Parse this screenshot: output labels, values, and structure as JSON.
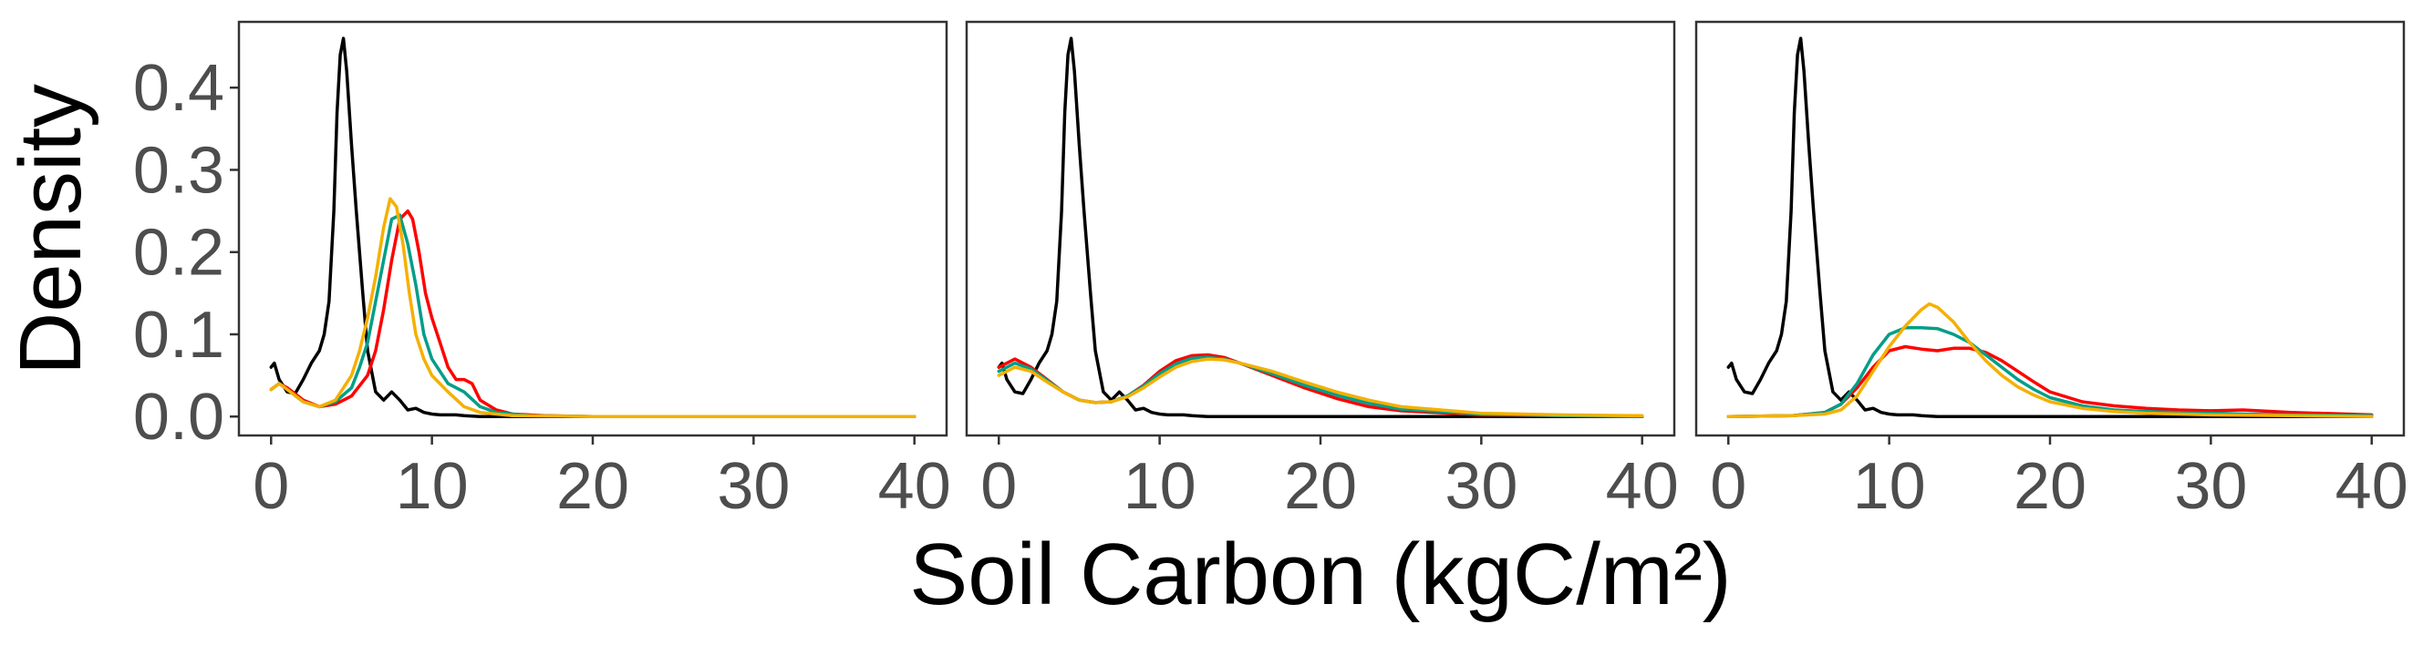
{
  "chart_data": [
    {
      "type": "line",
      "xlabel": "Soil Carbon (kgC/m²)",
      "ylabel": "Density",
      "xlim": [
        -2,
        42
      ],
      "ylim": [
        -0.023,
        0.48
      ],
      "x_ticks": [
        0,
        10,
        20,
        30,
        40
      ],
      "x_tick_labels": [
        "0",
        "10",
        "20",
        "30",
        "40"
      ],
      "y_ticks": [
        0.0,
        0.1,
        0.2,
        0.3,
        0.4
      ],
      "y_tick_labels": [
        "0.0",
        "0.1",
        "0.2",
        "0.3",
        "0.4"
      ],
      "grid": false,
      "legend": "none",
      "panels": [
        {
          "series": [
            {
              "color": "#000000",
              "x": [
                0,
                0.2,
                0.5,
                1.0,
                1.5,
                2.0,
                2.5,
                3.0,
                3.3,
                3.6,
                3.9,
                4.1,
                4.3,
                4.5,
                4.7,
                5.0,
                5.3,
                5.7,
                6.0,
                6.5,
                7.0,
                7.5,
                8.0,
                8.5,
                9.0,
                9.5,
                10.0,
                10.5,
                11.0,
                11.5,
                12.0,
                13.0,
                14.0,
                15.0,
                20.0,
                40.0
              ],
              "y": [
                0.06,
                0.065,
                0.045,
                0.03,
                0.028,
                0.045,
                0.065,
                0.08,
                0.1,
                0.14,
                0.25,
                0.37,
                0.44,
                0.46,
                0.42,
                0.33,
                0.25,
                0.15,
                0.08,
                0.03,
                0.02,
                0.03,
                0.02,
                0.008,
                0.01,
                0.005,
                0.003,
                0.002,
                0.002,
                0.002,
                0.001,
                0.0,
                0.0,
                0.0,
                0.0,
                0.0
              ]
            },
            {
              "color": "#ff0000",
              "x": [
                0,
                0.5,
                1.0,
                2.0,
                3.0,
                4.0,
                5.0,
                6.0,
                6.5,
                7.0,
                7.5,
                8.0,
                8.5,
                8.8,
                9.2,
                9.6,
                10.0,
                10.5,
                11.0,
                11.5,
                12.0,
                12.5,
                13.0,
                14.0,
                15.0,
                17.0,
                20.0,
                40.0
              ],
              "y": [
                0.033,
                0.04,
                0.035,
                0.02,
                0.012,
                0.015,
                0.025,
                0.05,
                0.08,
                0.13,
                0.19,
                0.24,
                0.25,
                0.24,
                0.2,
                0.15,
                0.12,
                0.09,
                0.06,
                0.045,
                0.045,
                0.04,
                0.02,
                0.008,
                0.003,
                0.001,
                0.0,
                0.0
              ]
            },
            {
              "color": "#009e88",
              "x": [
                0,
                0.5,
                1.0,
                2.0,
                3.0,
                4.0,
                5.0,
                5.5,
                6.0,
                6.5,
                7.0,
                7.5,
                8.0,
                8.5,
                9.0,
                9.5,
                10.0,
                11.0,
                12.0,
                13.0,
                14.0,
                16.0,
                20.0,
                40.0
              ],
              "y": [
                0.033,
                0.04,
                0.033,
                0.018,
                0.012,
                0.018,
                0.035,
                0.06,
                0.09,
                0.14,
                0.19,
                0.24,
                0.245,
                0.21,
                0.16,
                0.1,
                0.07,
                0.04,
                0.03,
                0.012,
                0.005,
                0.001,
                0.0,
                0.0
              ]
            },
            {
              "color": "#f5b000",
              "x": [
                0,
                0.5,
                1.0,
                2.0,
                3.0,
                4.0,
                5.0,
                5.5,
                6.0,
                6.5,
                7.0,
                7.4,
                7.8,
                8.2,
                8.6,
                9.0,
                9.5,
                10.0,
                11.0,
                12.0,
                13.0,
                15.0,
                20.0,
                40.0
              ],
              "y": [
                0.033,
                0.04,
                0.033,
                0.018,
                0.012,
                0.02,
                0.05,
                0.08,
                0.12,
                0.17,
                0.23,
                0.265,
                0.255,
                0.21,
                0.15,
                0.1,
                0.07,
                0.05,
                0.03,
                0.012,
                0.005,
                0.001,
                0.0,
                0.0
              ]
            }
          ]
        },
        {
          "series": [
            {
              "color": "#000000",
              "x": [
                0,
                0.2,
                0.5,
                1.0,
                1.5,
                2.0,
                2.5,
                3.0,
                3.3,
                3.6,
                3.9,
                4.1,
                4.3,
                4.5,
                4.7,
                5.0,
                5.3,
                5.7,
                6.0,
                6.5,
                7.0,
                7.5,
                8.0,
                8.5,
                9.0,
                9.5,
                10.0,
                10.5,
                11.0,
                11.5,
                12.0,
                13.0,
                14.0,
                15.0,
                20.0,
                40.0
              ],
              "y": [
                0.06,
                0.065,
                0.045,
                0.03,
                0.028,
                0.045,
                0.065,
                0.08,
                0.1,
                0.14,
                0.25,
                0.37,
                0.44,
                0.46,
                0.42,
                0.33,
                0.25,
                0.15,
                0.08,
                0.03,
                0.02,
                0.03,
                0.02,
                0.008,
                0.01,
                0.005,
                0.003,
                0.002,
                0.002,
                0.002,
                0.001,
                0.0,
                0.0,
                0.0,
                0.0,
                0.0
              ]
            },
            {
              "color": "#ff0000",
              "x": [
                0,
                1.0,
                2.0,
                3.0,
                4.0,
                5.0,
                6.0,
                7.0,
                8.0,
                9.0,
                10.0,
                11.0,
                12.0,
                13.0,
                14.0,
                15.0,
                17.0,
                19.0,
                21.0,
                23.0,
                25.0,
                30.0,
                35.0,
                40.0
              ],
              "y": [
                0.06,
                0.07,
                0.06,
                0.045,
                0.03,
                0.02,
                0.017,
                0.018,
                0.025,
                0.038,
                0.055,
                0.068,
                0.074,
                0.075,
                0.072,
                0.065,
                0.05,
                0.035,
                0.022,
                0.012,
                0.007,
                0.002,
                0.001,
                0.0
              ]
            },
            {
              "color": "#009e88",
              "x": [
                0,
                1.0,
                2.0,
                3.0,
                4.0,
                5.0,
                6.0,
                7.0,
                8.0,
                9.0,
                10.0,
                11.0,
                12.0,
                13.0,
                14.0,
                15.0,
                17.0,
                19.0,
                21.0,
                23.0,
                25.0,
                30.0,
                35.0,
                40.0
              ],
              "y": [
                0.055,
                0.065,
                0.058,
                0.044,
                0.03,
                0.02,
                0.017,
                0.018,
                0.025,
                0.037,
                0.052,
                0.064,
                0.071,
                0.072,
                0.07,
                0.065,
                0.052,
                0.038,
                0.026,
                0.016,
                0.009,
                0.003,
                0.001,
                0.0
              ]
            },
            {
              "color": "#f5b000",
              "x": [
                0,
                1.0,
                2.0,
                3.0,
                4.0,
                5.0,
                6.0,
                7.0,
                8.0,
                9.0,
                10.0,
                11.0,
                12.0,
                13.0,
                14.0,
                15.0,
                17.0,
                19.0,
                21.0,
                23.0,
                25.0,
                30.0,
                35.0,
                40.0
              ],
              "y": [
                0.05,
                0.06,
                0.055,
                0.042,
                0.03,
                0.02,
                0.017,
                0.018,
                0.024,
                0.035,
                0.048,
                0.06,
                0.067,
                0.07,
                0.069,
                0.065,
                0.055,
                0.042,
                0.03,
                0.02,
                0.012,
                0.004,
                0.002,
                0.001
              ]
            }
          ]
        },
        {
          "series": [
            {
              "color": "#000000",
              "x": [
                0,
                0.2,
                0.5,
                1.0,
                1.5,
                2.0,
                2.5,
                3.0,
                3.3,
                3.6,
                3.9,
                4.1,
                4.3,
                4.5,
                4.7,
                5.0,
                5.3,
                5.7,
                6.0,
                6.5,
                7.0,
                7.5,
                8.0,
                8.5,
                9.0,
                9.5,
                10.0,
                10.5,
                11.0,
                11.5,
                12.0,
                13.0,
                14.0,
                15.0,
                20.0,
                40.0
              ],
              "y": [
                0.06,
                0.065,
                0.045,
                0.03,
                0.028,
                0.045,
                0.065,
                0.08,
                0.1,
                0.14,
                0.25,
                0.37,
                0.44,
                0.46,
                0.42,
                0.33,
                0.25,
                0.15,
                0.08,
                0.03,
                0.02,
                0.03,
                0.02,
                0.008,
                0.01,
                0.005,
                0.003,
                0.002,
                0.002,
                0.002,
                0.001,
                0.0,
                0.0,
                0.0,
                0.0,
                0.0
              ]
            },
            {
              "color": "#ff0000",
              "x": [
                0,
                4.0,
                6.0,
                7.0,
                8.0,
                9.0,
                10.0,
                11.0,
                12.0,
                13.0,
                14.0,
                15.0,
                16.0,
                17.0,
                18.0,
                19.0,
                20.0,
                22.0,
                24.0,
                26.0,
                28.0,
                30.0,
                32.0,
                35.0,
                40.0
              ],
              "y": [
                0.0,
                0.001,
                0.005,
                0.015,
                0.035,
                0.06,
                0.08,
                0.085,
                0.082,
                0.08,
                0.083,
                0.083,
                0.078,
                0.068,
                0.055,
                0.042,
                0.03,
                0.018,
                0.013,
                0.01,
                0.008,
                0.007,
                0.008,
                0.005,
                0.002
              ]
            },
            {
              "color": "#009e88",
              "x": [
                0,
                4.0,
                6.0,
                7.0,
                8.0,
                9.0,
                10.0,
                11.0,
                12.0,
                13.0,
                14.0,
                15.0,
                16.0,
                17.0,
                18.0,
                19.0,
                20.0,
                22.0,
                24.0,
                26.0,
                28.0,
                30.0,
                32.0,
                35.0,
                40.0
              ],
              "y": [
                0.0,
                0.001,
                0.005,
                0.015,
                0.04,
                0.075,
                0.1,
                0.108,
                0.108,
                0.107,
                0.1,
                0.09,
                0.075,
                0.06,
                0.045,
                0.033,
                0.023,
                0.013,
                0.008,
                0.006,
                0.005,
                0.004,
                0.003,
                0.002,
                0.001
              ]
            },
            {
              "color": "#f5b000",
              "x": [
                0,
                4.0,
                6.0,
                7.0,
                8.0,
                9.0,
                10.0,
                11.0,
                12.0,
                12.5,
                13.0,
                14.0,
                15.0,
                16.0,
                17.0,
                18.0,
                19.0,
                20.0,
                22.0,
                24.0,
                26.0,
                28.0,
                30.0,
                35.0,
                40.0
              ],
              "y": [
                0.0,
                0.001,
                0.003,
                0.008,
                0.025,
                0.055,
                0.085,
                0.11,
                0.13,
                0.137,
                0.133,
                0.115,
                0.09,
                0.068,
                0.05,
                0.036,
                0.026,
                0.018,
                0.01,
                0.006,
                0.004,
                0.003,
                0.002,
                0.001,
                0.0
              ]
            }
          ]
        }
      ]
    }
  ]
}
